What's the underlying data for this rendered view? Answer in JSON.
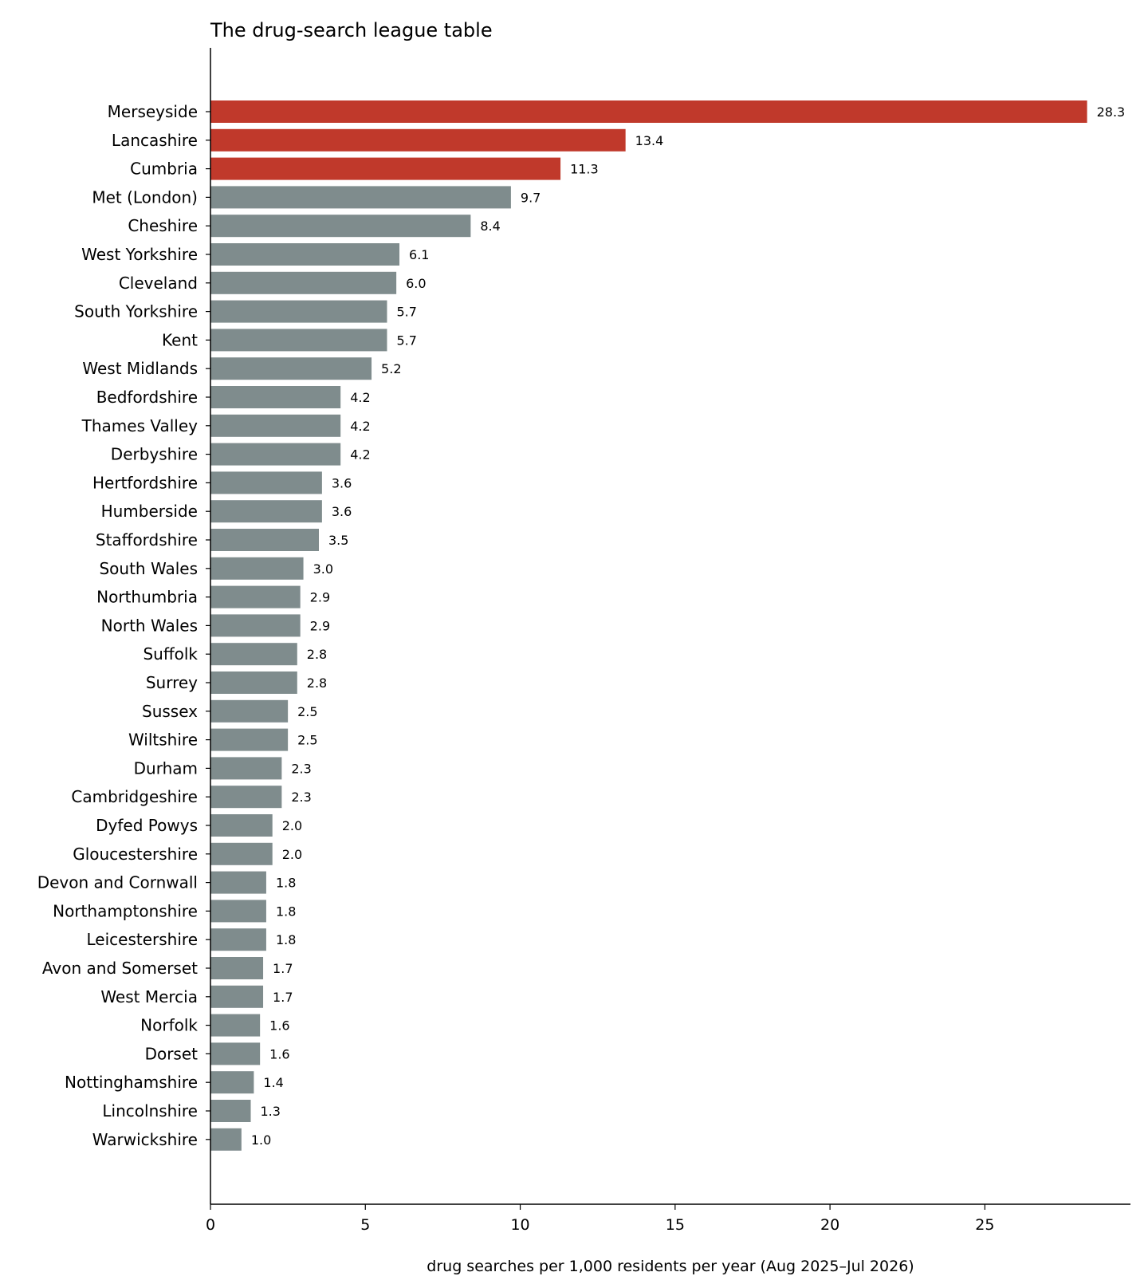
{
  "chart_data": {
    "type": "bar",
    "orientation": "horizontal",
    "title": "The drug-search league table",
    "xlabel": "drug searches per 1,000 residents per year (Aug 2025–Jul 2026)",
    "ylabel": "",
    "xlim": [
      0,
      29.7
    ],
    "xticks": [
      0,
      5,
      10,
      15,
      20,
      25
    ],
    "grid": false,
    "colors": {
      "highlight": "#c0392b",
      "default": "#7f8c8d"
    },
    "categories": [
      "Merseyside",
      "Lancashire",
      "Cumbria",
      "Met (London)",
      "Cheshire",
      "West Yorkshire",
      "Cleveland",
      "South Yorkshire",
      "Kent",
      "West Midlands",
      "Bedfordshire",
      "Thames Valley",
      "Derbyshire",
      "Hertfordshire",
      "Humberside",
      "Staffordshire",
      "South Wales",
      "Northumbria",
      "North Wales",
      "Suffolk",
      "Surrey",
      "Sussex",
      "Wiltshire",
      "Durham",
      "Cambridgeshire",
      "Dyfed Powys",
      "Gloucestershire",
      "Devon and Cornwall",
      "Northamptonshire",
      "Leicestershire",
      "Avon and Somerset",
      "West Mercia",
      "Norfolk",
      "Dorset",
      "Nottinghamshire",
      "Lincolnshire",
      "Warwickshire"
    ],
    "values": [
      28.3,
      13.4,
      11.3,
      9.7,
      8.4,
      6.1,
      6.0,
      5.7,
      5.7,
      5.2,
      4.2,
      4.2,
      4.2,
      3.6,
      3.6,
      3.5,
      3.0,
      2.9,
      2.9,
      2.8,
      2.8,
      2.5,
      2.5,
      2.3,
      2.3,
      2.0,
      2.0,
      1.8,
      1.8,
      1.8,
      1.7,
      1.7,
      1.6,
      1.6,
      1.4,
      1.3,
      1.0
    ],
    "highlighted": [
      "Merseyside",
      "Lancashire",
      "Cumbria"
    ]
  }
}
